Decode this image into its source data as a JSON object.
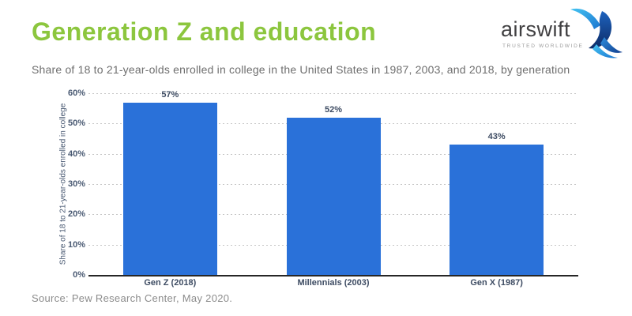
{
  "header": {
    "title": "Generation Z and education",
    "subtitle": "Share of 18 to 21-year-olds enrolled in college in the United States in 1987, 2003, and 2018, by generation"
  },
  "logo": {
    "name": "airswift",
    "tagline": "TRUSTED WORLDWIDE",
    "icon": "swift-bird-icon"
  },
  "chart_data": {
    "type": "bar",
    "title": "Generation Z and education",
    "categories": [
      "Gen Z (2018)",
      "Millennials (2003)",
      "Gen X (1987)"
    ],
    "values": [
      57,
      52,
      43
    ],
    "value_labels": [
      "57%",
      "52%",
      "43%"
    ],
    "xlabel": "",
    "ylabel": "Share of 18 to 21-year-olds enrolled in college",
    "ylim": [
      0,
      60
    ],
    "yticks": [
      0,
      10,
      20,
      30,
      40,
      50,
      60
    ],
    "ytick_labels": [
      "0%",
      "10%",
      "20%",
      "30%",
      "40%",
      "50%",
      "60%"
    ],
    "grid": "horizontal-dotted",
    "legend": "none",
    "bar_color": "#2A71D9"
  },
  "footer": {
    "source": "Source: Pew Research Center, May 2020."
  },
  "colors": {
    "title_green": "#8CC63E",
    "bar_blue": "#2A71D9",
    "axis_text": "#4A5A73",
    "subtitle_gray": "#6E6E6E",
    "source_gray": "#8C8C8C"
  }
}
